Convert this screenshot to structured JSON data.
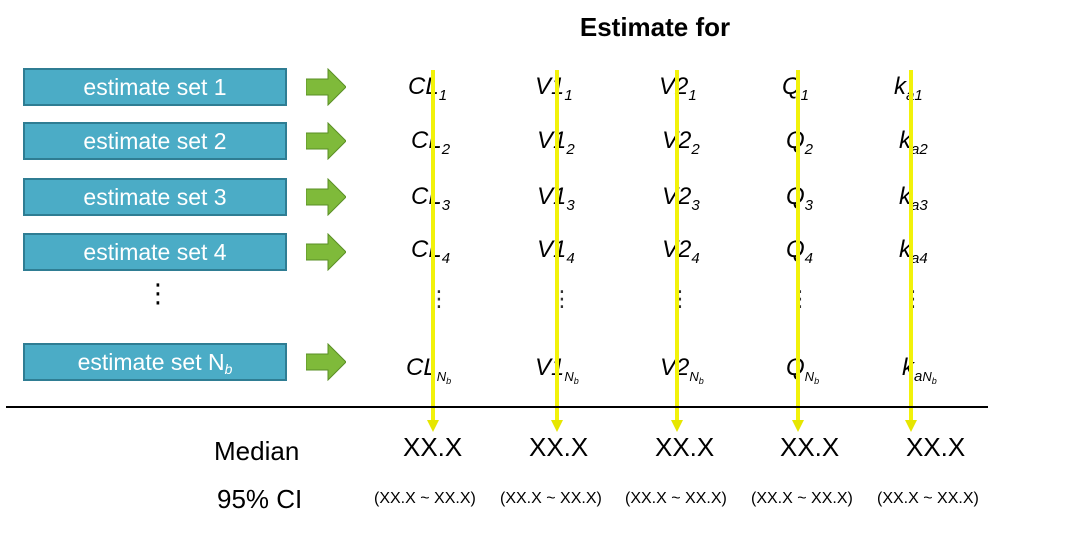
{
  "title": "Estimate for",
  "sets": [
    {
      "label": "estimate set 1",
      "sub": ""
    },
    {
      "label": "estimate set 2",
      "sub": ""
    },
    {
      "label": "estimate set 3",
      "sub": ""
    },
    {
      "label": "estimate set 4",
      "sub": ""
    },
    {
      "label": "estimate set N",
      "sub": "b"
    }
  ],
  "ellipsis": "⋮",
  "params": [
    {
      "base": "CL",
      "subs": [
        "1",
        "2",
        "3",
        "4"
      ]
    },
    {
      "base": "V1",
      "subs": [
        "1",
        "2",
        "3",
        "4"
      ]
    },
    {
      "base": "V2",
      "subs": [
        "1",
        "2",
        "3",
        "4"
      ]
    },
    {
      "base": "Q",
      "subs": [
        "1",
        "2",
        "3",
        "4"
      ]
    },
    {
      "base": "k",
      "subs": [
        "a1",
        "a2",
        "a3",
        "a4"
      ]
    }
  ],
  "last_sub": {
    "prefix": [
      "",
      "",
      "",
      "",
      "a"
    ],
    "n": "N",
    "b": "b"
  },
  "median_label": "Median",
  "ci_label": "95% CI",
  "median_values": [
    "XX.X",
    "XX.X",
    "XX.X",
    "XX.X",
    "XX.X"
  ],
  "ci_values": [
    "(XX.X ~ XX.X)",
    "(XX.X ~ XX.X)",
    "(XX.X ~ XX.X)",
    "(XX.X ~ XX.X)",
    "(XX.X ~ XX.X)"
  ],
  "colors": {
    "box": "#4bacc6",
    "box_border": "#2f7d93",
    "green_arrow": "#7fba3a",
    "yellow_arrow": "#f2f20a"
  }
}
